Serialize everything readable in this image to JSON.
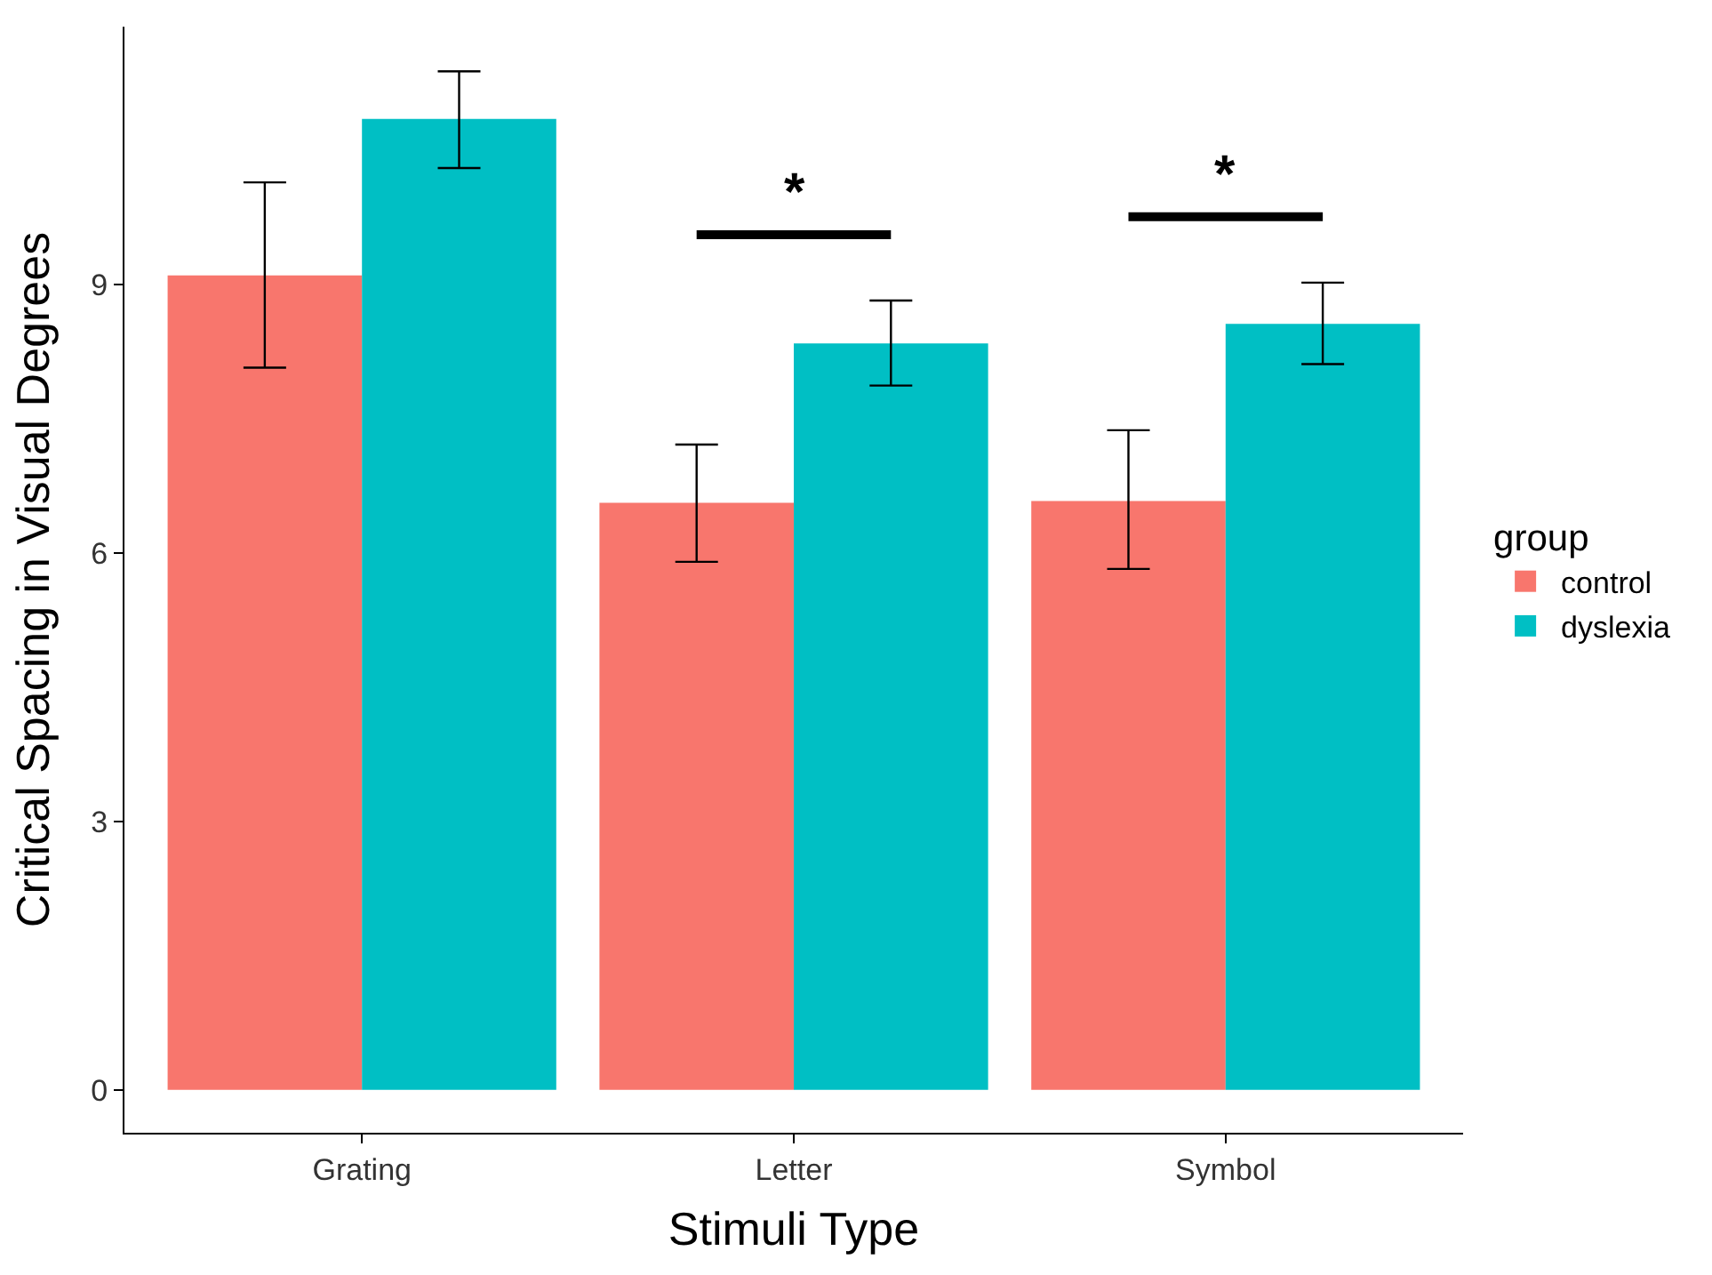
{
  "chart_data": {
    "type": "bar",
    "xlabel": "Stimuli Type",
    "ylabel": "Critical Spacing in Visual Degrees",
    "legend_title": "group",
    "categories": [
      "Grating",
      "Letter",
      "Symbol"
    ],
    "series": [
      {
        "name": "control",
        "color": "#f8766d",
        "values": [
          9.1,
          6.56,
          6.58
        ],
        "errors": [
          [
            8.07,
            10.14
          ],
          [
            5.9,
            7.21
          ],
          [
            5.82,
            7.37
          ]
        ]
      },
      {
        "name": "dyslexia",
        "color": "#00bfc4",
        "values": [
          10.85,
          8.34,
          8.56
        ],
        "errors": [
          [
            10.3,
            11.38
          ],
          [
            7.87,
            8.82
          ],
          [
            8.11,
            9.02
          ]
        ]
      }
    ],
    "ylim": [
      -0.48,
      11.88
    ],
    "yticks": [
      0,
      3,
      6,
      9
    ],
    "legend": "right",
    "annotations": [
      "*",
      "*"
    ]
  }
}
